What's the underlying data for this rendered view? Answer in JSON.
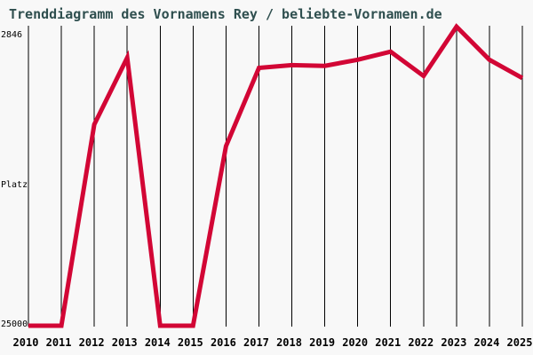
{
  "page": {
    "background_color": "#f8f8f8"
  },
  "chart_data": {
    "type": "line",
    "title": "Trenddiagramm des Vornamens Rey / beliebte-Vornamen.de",
    "title_color": "#2f4f4f",
    "ylabel": "Platz",
    "categories": [
      "2010",
      "2011",
      "2012",
      "2013",
      "2014",
      "2015",
      "2016",
      "2017",
      "2018",
      "2019",
      "2020",
      "2021",
      "2022",
      "2023",
      "2024",
      "2025"
    ],
    "values": [
      25000,
      25000,
      10100,
      5150,
      25000,
      25000,
      11700,
      5900,
      5700,
      5750,
      5300,
      4700,
      6500,
      2846,
      5300,
      6650
    ],
    "y_axis": {
      "top_label": "2846",
      "bottom_label": "25000",
      "min": 2846,
      "max": 25000,
      "inverted_rank_axis": true
    },
    "grid": {
      "vertical_lines_per_year": true,
      "horizontal_lines": false,
      "color": "#000000"
    },
    "line_color": "#d20635",
    "line_width": 5,
    "legend": "none"
  }
}
